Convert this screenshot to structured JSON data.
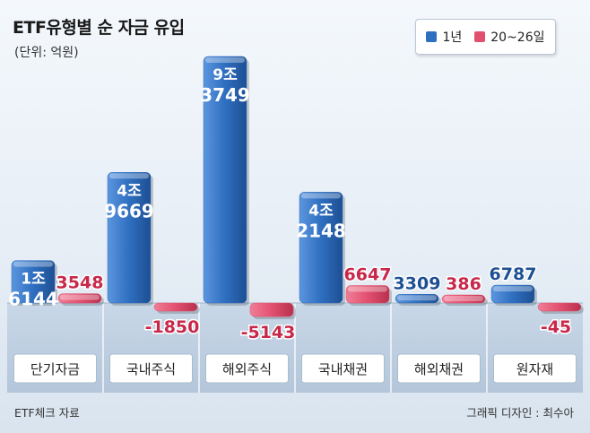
{
  "header": {
    "title": "ETF유형별 순 자금 유입",
    "unit": "(단위: 억원)"
  },
  "legend": {
    "items": [
      {
        "label": "1년",
        "color": "#2f6fc0"
      },
      {
        "label": "20~26일",
        "color": "#e2506f"
      }
    ]
  },
  "footer": {
    "source": "ETF체크 자료",
    "credit": "그래픽 디자인 : 최수아"
  },
  "colors": {
    "bar_blue": "#2f6fc0",
    "bar_pink": "#e2506f"
  },
  "chart_data": {
    "type": "bar",
    "title": "ETF유형별 순 자금 유입",
    "subtitle": "(단위: 억원)",
    "categories": [
      "단기자금",
      "국내주식",
      "해외주식",
      "국내채권",
      "해외채권",
      "원자재"
    ],
    "series": [
      {
        "name": "1년",
        "values": [
          16144,
          49669,
          93749,
          42148,
          3309,
          6787
        ],
        "labels": [
          [
            "1조",
            "6144"
          ],
          [
            "4조",
            "9669"
          ],
          [
            "9조",
            "3749"
          ],
          [
            "4조",
            "2148"
          ],
          [
            "3309"
          ],
          [
            "6787"
          ]
        ]
      },
      {
        "name": "20~26일",
        "values": [
          3548,
          -1850,
          -5143,
          6647,
          386,
          -45
        ],
        "labels": [
          [
            "3548"
          ],
          [
            "-1850"
          ],
          [
            "-5143"
          ],
          [
            "6647"
          ],
          [
            "386"
          ],
          [
            "-45"
          ]
        ]
      }
    ],
    "legend_position": "top-right",
    "grid": false
  }
}
